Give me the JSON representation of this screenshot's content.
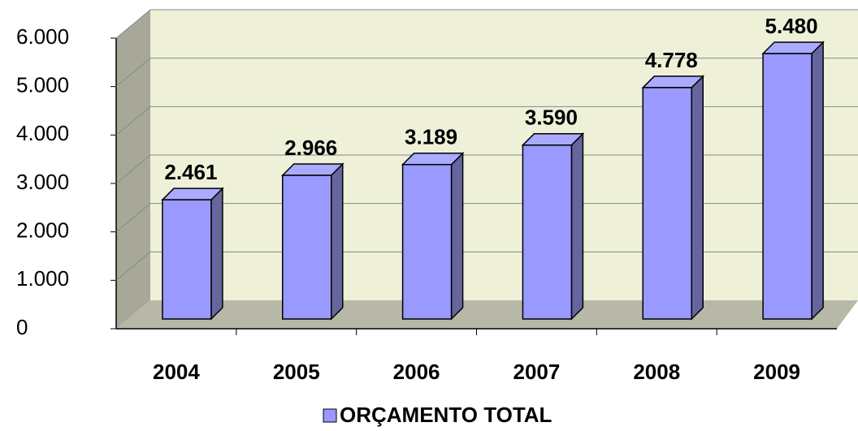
{
  "chart_data": {
    "type": "bar",
    "categories": [
      "2004",
      "2005",
      "2006",
      "2007",
      "2008",
      "2009"
    ],
    "series": [
      {
        "name": "ORÇAMENTO TOTAL",
        "color": "#9999ff",
        "values": [
          2461,
          2966,
          3189,
          3590,
          4778,
          5480
        ],
        "value_labels": [
          "2.461",
          "2.966",
          "3.189",
          "3.590",
          "4.778",
          "5.480"
        ]
      }
    ],
    "ylim": [
      0,
      6000
    ],
    "yticks": [
      0,
      {
        "value": 1000,
        "label": "1.000"
      },
      {
        "value": 2000,
        "label": "2.000"
      },
      {
        "value": 3000,
        "label": "3.000"
      },
      {
        "value": 4000,
        "label": "4.000"
      },
      {
        "value": 5000,
        "label": "5.000"
      },
      {
        "value": 6000,
        "label": "6.000"
      }
    ],
    "grid": true
  }
}
